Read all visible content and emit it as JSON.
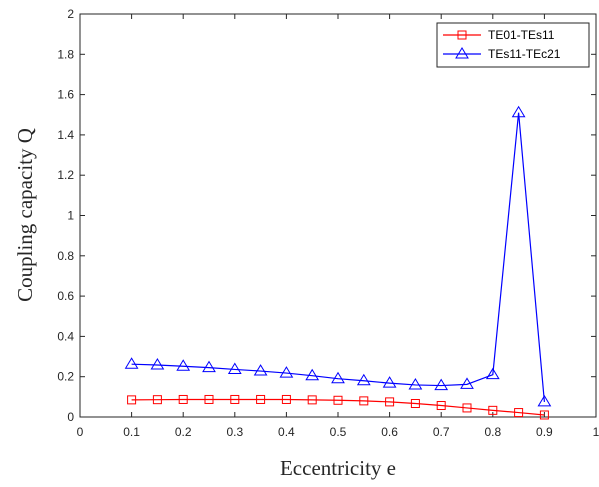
{
  "chart_data": {
    "type": "line",
    "title": "",
    "xlabel": "Eccentricity  e",
    "ylabel": "Coupling capacity Q",
    "xlim": [
      0,
      1
    ],
    "ylim": [
      0,
      2
    ],
    "xticks": [
      "0",
      "0.1",
      "0.2",
      "0.3",
      "0.4",
      "0.5",
      "0.6",
      "0.7",
      "0.8",
      "0.9",
      "1"
    ],
    "yticks": [
      "0",
      "0.2",
      "0.4",
      "0.6",
      "0.8",
      "1",
      "1.2",
      "1.4",
      "1.6",
      "1.8",
      "2"
    ],
    "grid": false,
    "legend_position": "top-right",
    "x": [
      0.1,
      0.15,
      0.2,
      0.25,
      0.3,
      0.35,
      0.4,
      0.45,
      0.5,
      0.55,
      0.6,
      0.65,
      0.7,
      0.75,
      0.8,
      0.85,
      0.9
    ],
    "series": [
      {
        "name": "TE01-TEs11",
        "color": "#ff0000",
        "marker": "square",
        "values": [
          0.085,
          0.086,
          0.087,
          0.087,
          0.087,
          0.087,
          0.087,
          0.085,
          0.083,
          0.08,
          0.075,
          0.067,
          0.057,
          0.045,
          0.033,
          0.022,
          0.01
        ]
      },
      {
        "name": "TEs11-TEc21",
        "color": "#0000ff",
        "marker": "triangle",
        "values": [
          0.262,
          0.258,
          0.252,
          0.245,
          0.236,
          0.228,
          0.218,
          0.205,
          0.19,
          0.18,
          0.168,
          0.159,
          0.156,
          0.162,
          0.21,
          1.51,
          0.075
        ]
      }
    ]
  }
}
